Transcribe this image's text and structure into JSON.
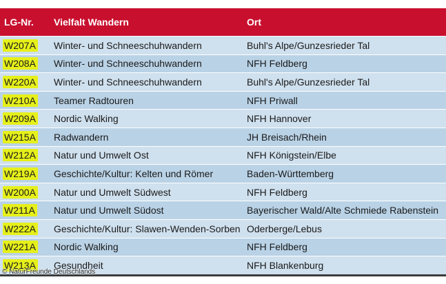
{
  "table": {
    "headers": [
      "LG-Nr.",
      "Vielfalt Wandern",
      "Ort"
    ],
    "rows": [
      {
        "code": "W207A",
        "title": "Winter- und Schneeschuhwandern",
        "place": "Buhl's Alpe/Gunzesrieder Tal"
      },
      {
        "code": "W208A",
        "title": "Winter- und Schneeschuhwandern",
        "place": "NFH Feldberg"
      },
      {
        "code": "W220A",
        "title": "Winter- und Schneeschuhwandern",
        "place": "Buhl's Alpe/Gunzesrieder Tal"
      },
      {
        "code": "W210A",
        "title": "Teamer Radtouren",
        "place": "NFH Priwall"
      },
      {
        "code": "W209A",
        "title": "Nordic Walking",
        "place": "NFH Hannover"
      },
      {
        "code": "W215A",
        "title": "Radwandern",
        "place": "JH Breisach/Rhein"
      },
      {
        "code": "W212A",
        "title": "Natur und Umwelt Ost",
        "place": "NFH Königstein/Elbe"
      },
      {
        "code": "W219A",
        "title": "Geschichte/Kultur: Kelten und Römer",
        "place": "Baden-Württemberg"
      },
      {
        "code": "W200A",
        "title": "Natur und Umwelt Südwest",
        "place": "NFH Feldberg"
      },
      {
        "code": "W211A",
        "title": "Natur und Umwelt Südost",
        "place": "Bayerischer Wald/Alte Schmiede Rabenstein"
      },
      {
        "code": "W222A",
        "title": "Geschichte/Kultur: Slawen-Wenden-Sorben",
        "place": "Oderberge/Lebus"
      },
      {
        "code": "W221A",
        "title": "Nordic Walking",
        "place": "NFH Feldberg"
      },
      {
        "code": "W213A",
        "title": "Gesundheit",
        "place": "NFH Blankenburg"
      }
    ]
  },
  "copyright": "© NaturFreunde Deutschlands",
  "colors": {
    "header_bg": "#c8102e",
    "row_bg_light": "#cfe0ee",
    "row_bg_dark": "#b9d2e6",
    "code_highlight": "#e6f01a"
  }
}
